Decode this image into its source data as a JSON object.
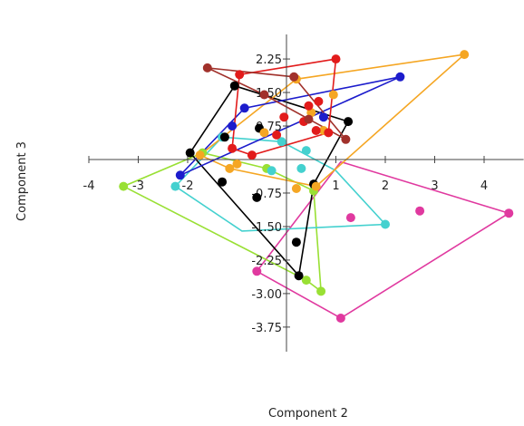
{
  "chart_data": {
    "type": "scatter",
    "xlabel": "Component 2",
    "ylabel": "Component 3",
    "xlim": [
      -4,
      4.8
    ],
    "ylim": [
      -4.3,
      2.8
    ],
    "x_ticks": [
      "-4",
      "-3",
      "-2",
      "1",
      "2",
      "3",
      "4"
    ],
    "y_ticks": [
      "2.25",
      "1.50",
      "0.75",
      "-0.75",
      "-1.50",
      "-2.25",
      "-3.00",
      "-3.75"
    ],
    "grid": false,
    "legend": "none",
    "series": [
      {
        "color": "#e0399f",
        "points": [
          [
            -0.6,
            -2.5
          ],
          [
            1.1,
            -3.55
          ],
          [
            4.5,
            -1.2
          ],
          [
            1.3,
            -1.3
          ],
          [
            2.7,
            -1.15
          ]
        ],
        "hull": [
          [
            -0.6,
            -2.5
          ],
          [
            1.1,
            -3.55
          ],
          [
            4.5,
            -1.2
          ],
          [
            1.1,
            -0.05
          ]
        ]
      },
      {
        "color": "#99e034",
        "points": [
          [
            -3.3,
            -0.6
          ],
          [
            0.4,
            -2.7
          ],
          [
            0.7,
            -2.95
          ],
          [
            -0.4,
            -0.2
          ],
          [
            0.55,
            -0.7
          ],
          [
            -1.7,
            0.15
          ]
        ],
        "hull": [
          [
            -3.3,
            -0.6
          ],
          [
            0.4,
            -2.7
          ],
          [
            0.7,
            -2.95
          ],
          [
            0.55,
            -0.7
          ],
          [
            -0.4,
            -0.2
          ],
          [
            -1.7,
            0.15
          ]
        ]
      },
      {
        "color": "#44d1cf",
        "points": [
          [
            -2.25,
            -0.6
          ],
          [
            2.0,
            -1.45
          ],
          [
            -0.3,
            -0.25
          ],
          [
            0.3,
            -0.2
          ],
          [
            -0.1,
            0.4
          ],
          [
            0.4,
            0.2
          ],
          [
            -1.3,
            0.5
          ]
        ],
        "hull": [
          [
            -2.25,
            -0.6
          ],
          [
            -0.9,
            -1.6
          ],
          [
            2.0,
            -1.45
          ],
          [
            1.0,
            -0.25
          ],
          [
            -0.1,
            0.4
          ],
          [
            -1.3,
            0.5
          ]
        ]
      },
      {
        "color": "#000000",
        "points": [
          [
            -1.05,
            1.65
          ],
          [
            1.25,
            0.85
          ],
          [
            -1.25,
            0.5
          ],
          [
            -1.95,
            0.15
          ],
          [
            0.2,
            -1.85
          ],
          [
            0.25,
            -2.6
          ],
          [
            -0.6,
            -0.85
          ],
          [
            -1.3,
            -0.5
          ],
          [
            -0.55,
            0.7
          ],
          [
            0.55,
            -0.55
          ]
        ],
        "hull": [
          [
            -1.05,
            1.65
          ],
          [
            1.25,
            0.85
          ],
          [
            0.55,
            -0.55
          ],
          [
            0.25,
            -2.6
          ],
          [
            -1.95,
            0.15
          ]
        ]
      },
      {
        "color": "#f5a623",
        "points": [
          [
            3.6,
            2.35
          ],
          [
            0.2,
            1.8
          ],
          [
            0.95,
            1.45
          ],
          [
            0.75,
            0.65
          ],
          [
            -1.15,
            -0.2
          ],
          [
            -1.75,
            0.1
          ],
          [
            0.2,
            -0.65
          ],
          [
            0.6,
            -0.6
          ],
          [
            -1.0,
            -0.1
          ],
          [
            0.5,
            1.05
          ],
          [
            -0.45,
            0.6
          ]
        ],
        "hull": [
          [
            3.6,
            2.35
          ],
          [
            0.2,
            1.8
          ],
          [
            -1.75,
            0.1
          ],
          [
            -1.15,
            -0.2
          ],
          [
            0.6,
            -0.6
          ]
        ]
      },
      {
        "color": "#1c1ccc",
        "points": [
          [
            2.3,
            1.85
          ],
          [
            -2.15,
            -0.35
          ],
          [
            -0.85,
            1.15
          ],
          [
            -1.1,
            0.75
          ],
          [
            0.75,
            0.95
          ]
        ],
        "hull": [
          [
            2.3,
            1.85
          ],
          [
            -2.15,
            -0.35
          ],
          [
            -0.85,
            1.15
          ]
        ]
      },
      {
        "color": "#e21b1b",
        "points": [
          [
            1.0,
            2.25
          ],
          [
            -0.95,
            1.9
          ],
          [
            0.65,
            1.3
          ],
          [
            0.45,
            1.2
          ],
          [
            -0.05,
            0.95
          ],
          [
            0.6,
            0.65
          ],
          [
            -0.7,
            0.1
          ],
          [
            -1.1,
            0.25
          ],
          [
            0.35,
            0.85
          ],
          [
            0.85,
            0.6
          ],
          [
            -0.2,
            0.55
          ]
        ],
        "hull": [
          [
            1.0,
            2.25
          ],
          [
            -0.95,
            1.9
          ],
          [
            -1.1,
            0.25
          ],
          [
            -0.7,
            0.1
          ],
          [
            0.85,
            0.6
          ]
        ]
      },
      {
        "color": "#a1312b",
        "points": [
          [
            -1.6,
            2.05
          ],
          [
            0.15,
            1.85
          ],
          [
            -0.45,
            1.45
          ],
          [
            1.2,
            0.45
          ],
          [
            0.45,
            0.9
          ]
        ],
        "hull": [
          [
            -1.6,
            2.05
          ],
          [
            0.15,
            1.85
          ],
          [
            1.2,
            0.45
          ],
          [
            -0.45,
            1.45
          ]
        ]
      }
    ]
  }
}
